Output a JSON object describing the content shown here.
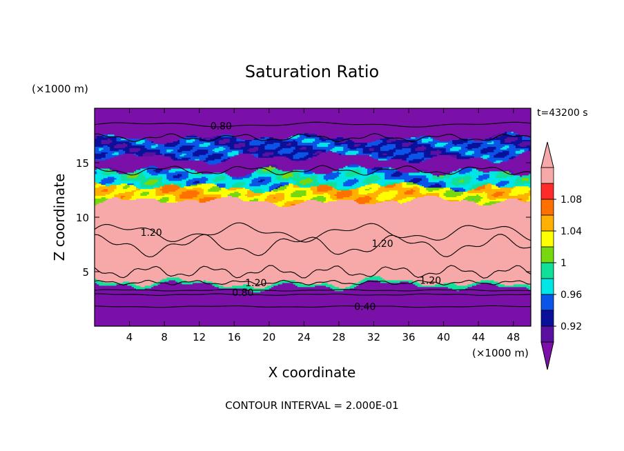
{
  "chart_data": {
    "type": "heatmap",
    "title": "Saturation Ratio",
    "xlabel": "X coordinate",
    "ylabel": "Z coordinate",
    "x_unit": "(×1000 m)",
    "y_unit": "(×1000 m)",
    "time_label": "t=43200 s",
    "footer": "CONTOUR INTERVAL = 2.000E-01",
    "xlim": [
      0,
      50
    ],
    "ylim": [
      0,
      20
    ],
    "x_ticks": [
      4,
      8,
      12,
      16,
      20,
      24,
      28,
      32,
      36,
      40,
      44,
      48
    ],
    "y_ticks": [
      5,
      10,
      15
    ],
    "colorbar": {
      "levels": [
        0.92,
        0.94,
        0.96,
        0.98,
        1.0,
        1.02,
        1.04,
        1.06,
        1.08,
        1.1
      ],
      "labels": [
        "0.92",
        "0.96",
        "1",
        "1.04",
        "1.08"
      ],
      "colors": [
        "#5a10a0",
        "#0a109a",
        "#0a55e8",
        "#00e5e5",
        "#10e09a",
        "#78d810",
        "#ffff00",
        "#ffb000",
        "#ff7000",
        "#ff2a2a",
        "#f7a8a8"
      ],
      "below_color": "#7a10a8",
      "above_color": "#f7a8a8"
    },
    "contour_labels": [
      {
        "text": "0.80",
        "x": 14.5,
        "y": 18.4
      },
      {
        "text": "1.20",
        "x": 6.5,
        "y": 8.6
      },
      {
        "text": "1.20",
        "x": 33,
        "y": 7.6
      },
      {
        "text": "1.20",
        "x": 18.5,
        "y": 4.0
      },
      {
        "text": "1.20",
        "x": 38.5,
        "y": 4.2
      },
      {
        "text": "0.80",
        "x": 17,
        "y": 3.1
      },
      {
        "text": "0.40",
        "x": 31,
        "y": 1.8
      }
    ],
    "bands": [
      {
        "z": [
          0,
          3.7
        ],
        "value": 0.5
      },
      {
        "z": [
          3.7,
          4.0
        ],
        "value": 1.0
      },
      {
        "z": [
          4.0,
          11.5
        ],
        "value": 1.2
      },
      {
        "z": [
          11.5,
          12.8
        ],
        "value": 1.06
      },
      {
        "z": [
          12.8,
          14.3
        ],
        "value": 0.99
      },
      {
        "z": [
          14.3,
          15.5
        ],
        "value": 0.9
      },
      {
        "z": [
          15.5,
          17.3
        ],
        "value": 0.96
      },
      {
        "z": [
          17.3,
          20
        ],
        "value": 0.8
      }
    ]
  }
}
